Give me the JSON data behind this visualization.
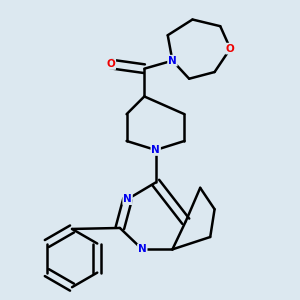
{
  "background_color": "#dce8f0",
  "bond_color": "#000000",
  "atom_colors": {
    "N": "#0000ee",
    "O": "#ee0000",
    "C": "#000000"
  },
  "bond_width": 1.8,
  "figsize": [
    3.0,
    3.0
  ],
  "dpi": 100
}
